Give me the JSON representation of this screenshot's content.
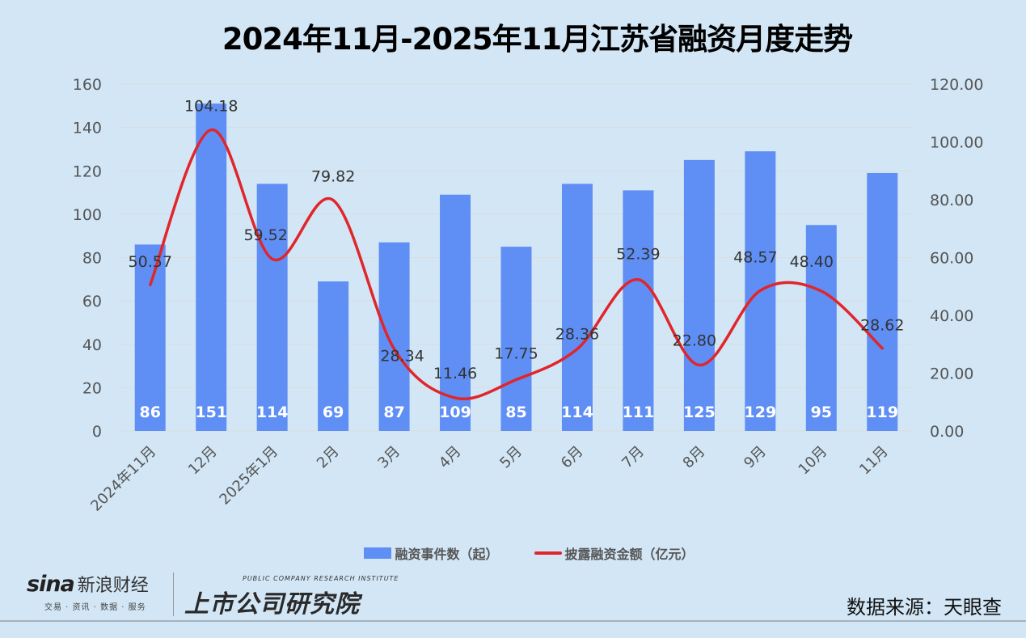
{
  "title": "2024年11月-2025年11月江苏省融资月度走势",
  "legend": {
    "bar_label": "融资事件数（起）",
    "line_label": "披露融资金额（亿元）"
  },
  "footer": {
    "sina_logo": "sina",
    "sina_name": "新浪财经",
    "sina_tagline": "交易 · 资讯 · 数据 · 服务",
    "institute_en": "PUBLIC COMPANY RESEARCH INSTITUTE",
    "institute_cn": "上市公司研究院",
    "source": "数据来源：天眼查"
  },
  "colors": {
    "bar": "#5f8ff5",
    "line": "#e0262b",
    "background": "#d2e6f5"
  },
  "chart_data": {
    "type": "bar+line",
    "title": "2024年11月-2025年11月江苏省融资月度走势",
    "categories": [
      "2024年11月",
      "12月",
      "2025年1月",
      "2月",
      "3月",
      "4月",
      "5月",
      "6月",
      "7月",
      "8月",
      "9月",
      "10月",
      "11月"
    ],
    "series": [
      {
        "name": "融资事件数（起）",
        "type": "bar",
        "axis": "left",
        "values": [
          86,
          151,
          114,
          69,
          87,
          109,
          85,
          114,
          111,
          125,
          129,
          95,
          119
        ]
      },
      {
        "name": "披露融资金额（亿元）",
        "type": "line",
        "axis": "right",
        "smooth": true,
        "values": [
          50.57,
          104.18,
          59.52,
          79.82,
          28.34,
          11.46,
          17.75,
          28.36,
          52.39,
          22.8,
          48.57,
          48.4,
          28.62
        ],
        "labels": [
          "50.57",
          "104.18",
          "59.52",
          "79.82",
          "28.34",
          "11.46",
          "17.75",
          "28.36",
          "52.39",
          "22.80",
          "48.57",
          "48.40",
          "28.62"
        ]
      }
    ],
    "y_left": {
      "ticks": [
        "0",
        "20",
        "40",
        "60",
        "80",
        "100",
        "120",
        "140",
        "160"
      ],
      "ylim": [
        0,
        160
      ]
    },
    "y_right": {
      "ticks": [
        "0.00",
        "20.00",
        "40.00",
        "60.00",
        "80.00",
        "100.00",
        "120.00"
      ],
      "ylim": [
        0,
        120
      ]
    },
    "grid": true,
    "legend_position": "bottom"
  }
}
